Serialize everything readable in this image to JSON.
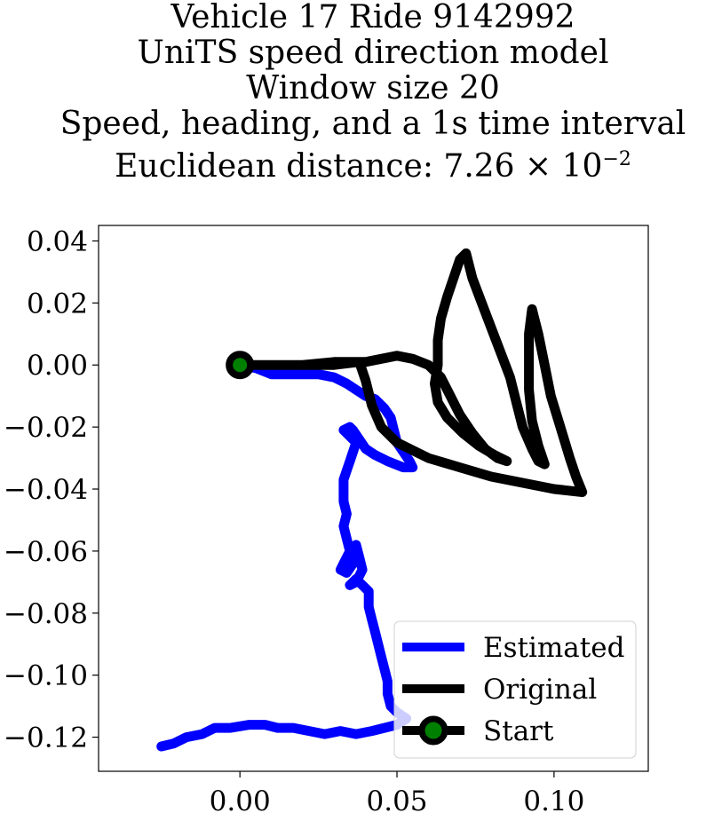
{
  "title": {
    "line1": "Vehicle 17 Ride 9142992",
    "line2": "UniTS speed direction model",
    "line3": "Window size 20",
    "line4": "Speed, heading, and a 1s time interval",
    "line5_prefix": "Euclidean distance: 7.26 × 10",
    "line5_exponent": "−2"
  },
  "chart_data": {
    "type": "line",
    "xlim": [
      -0.045,
      0.13
    ],
    "ylim": [
      -0.131,
      0.045
    ],
    "x_ticks": [
      {
        "value": 0.0,
        "label": "0.00"
      },
      {
        "value": 0.05,
        "label": "0.05"
      },
      {
        "value": 0.1,
        "label": "0.10"
      }
    ],
    "y_ticks": [
      {
        "value": 0.04,
        "label": "0.04"
      },
      {
        "value": 0.02,
        "label": "0.02"
      },
      {
        "value": 0.0,
        "label": "0.00"
      },
      {
        "value": -0.02,
        "label": "−0.02"
      },
      {
        "value": -0.04,
        "label": "−0.04"
      },
      {
        "value": -0.06,
        "label": "−0.06"
      },
      {
        "value": -0.08,
        "label": "−0.08"
      },
      {
        "value": -0.1,
        "label": "−0.10"
      },
      {
        "value": -0.12,
        "label": "−0.12"
      }
    ],
    "grid": false,
    "legend_position": "lower-right",
    "series": [
      {
        "name": "Estimated",
        "color": "#0000ff",
        "points": [
          [
            0.0,
            0.0
          ],
          [
            0.005,
            -0.001
          ],
          [
            0.01,
            -0.003
          ],
          [
            0.015,
            -0.003
          ],
          [
            0.02,
            -0.003
          ],
          [
            0.025,
            -0.003
          ],
          [
            0.03,
            -0.004
          ],
          [
            0.034,
            -0.006
          ],
          [
            0.037,
            -0.008
          ],
          [
            0.04,
            -0.01
          ],
          [
            0.043,
            -0.011
          ],
          [
            0.046,
            -0.014
          ],
          [
            0.048,
            -0.017
          ],
          [
            0.049,
            -0.021
          ],
          [
            0.05,
            -0.025
          ],
          [
            0.052,
            -0.028
          ],
          [
            0.054,
            -0.031
          ],
          [
            0.055,
            -0.033
          ],
          [
            0.052,
            -0.033
          ],
          [
            0.047,
            -0.031
          ],
          [
            0.043,
            -0.029
          ],
          [
            0.04,
            -0.027
          ],
          [
            0.038,
            -0.024
          ],
          [
            0.036,
            -0.021
          ],
          [
            0.035,
            -0.02
          ],
          [
            0.033,
            -0.021
          ],
          [
            0.035,
            -0.023
          ],
          [
            0.037,
            -0.025
          ],
          [
            0.036,
            -0.028
          ],
          [
            0.035,
            -0.031
          ],
          [
            0.034,
            -0.034
          ],
          [
            0.033,
            -0.037
          ],
          [
            0.033,
            -0.04
          ],
          [
            0.033,
            -0.044
          ],
          [
            0.034,
            -0.048
          ],
          [
            0.033,
            -0.052
          ],
          [
            0.034,
            -0.056
          ],
          [
            0.035,
            -0.06
          ],
          [
            0.033,
            -0.064
          ],
          [
            0.032,
            -0.066
          ],
          [
            0.034,
            -0.067
          ],
          [
            0.036,
            -0.064
          ],
          [
            0.037,
            -0.06
          ],
          [
            0.037,
            -0.058
          ],
          [
            0.038,
            -0.062
          ],
          [
            0.039,
            -0.066
          ],
          [
            0.037,
            -0.07
          ],
          [
            0.035,
            -0.071
          ],
          [
            0.037,
            -0.069
          ],
          [
            0.039,
            -0.071
          ],
          [
            0.041,
            -0.073
          ],
          [
            0.041,
            -0.078
          ],
          [
            0.042,
            -0.082
          ],
          [
            0.043,
            -0.086
          ],
          [
            0.044,
            -0.09
          ],
          [
            0.045,
            -0.094
          ],
          [
            0.046,
            -0.098
          ],
          [
            0.047,
            -0.102
          ],
          [
            0.047,
            -0.106
          ],
          [
            0.048,
            -0.11
          ],
          [
            0.05,
            -0.112
          ],
          [
            0.053,
            -0.114
          ],
          [
            0.05,
            -0.116
          ],
          [
            0.046,
            -0.117
          ],
          [
            0.042,
            -0.118
          ],
          [
            0.037,
            -0.119
          ],
          [
            0.032,
            -0.118
          ],
          [
            0.027,
            -0.119
          ],
          [
            0.022,
            -0.118
          ],
          [
            0.017,
            -0.117
          ],
          [
            0.012,
            -0.117
          ],
          [
            0.008,
            -0.116
          ],
          [
            0.003,
            -0.116
          ],
          [
            -0.003,
            -0.117
          ],
          [
            -0.008,
            -0.117
          ],
          [
            -0.012,
            -0.119
          ],
          [
            -0.017,
            -0.12
          ],
          [
            -0.021,
            -0.122
          ],
          [
            -0.025,
            -0.123
          ]
        ]
      },
      {
        "name": "Original",
        "color": "#000000",
        "points": [
          [
            0.0,
            0.0
          ],
          [
            0.01,
            0.0
          ],
          [
            0.02,
            0.0
          ],
          [
            0.03,
            0.001
          ],
          [
            0.04,
            0.001
          ],
          [
            0.045,
            0.002
          ],
          [
            0.05,
            0.003
          ],
          [
            0.055,
            0.002
          ],
          [
            0.06,
            0.0
          ],
          [
            0.064,
            -0.004
          ],
          [
            0.067,
            -0.01
          ],
          [
            0.07,
            -0.016
          ],
          [
            0.074,
            -0.022
          ],
          [
            0.078,
            -0.027
          ],
          [
            0.082,
            -0.03
          ],
          [
            0.085,
            -0.031
          ],
          [
            0.081,
            -0.029
          ],
          [
            0.076,
            -0.026
          ],
          [
            0.071,
            -0.022
          ],
          [
            0.066,
            -0.017
          ],
          [
            0.063,
            -0.012
          ],
          [
            0.062,
            -0.006
          ],
          [
            0.063,
            0.0
          ],
          [
            0.063,
            0.008
          ],
          [
            0.064,
            0.015
          ],
          [
            0.066,
            0.022
          ],
          [
            0.068,
            0.028
          ],
          [
            0.07,
            0.034
          ],
          [
            0.072,
            0.036
          ],
          [
            0.074,
            0.028
          ],
          [
            0.077,
            0.02
          ],
          [
            0.08,
            0.012
          ],
          [
            0.083,
            0.004
          ],
          [
            0.086,
            -0.004
          ],
          [
            0.088,
            -0.012
          ],
          [
            0.09,
            -0.02
          ],
          [
            0.093,
            -0.027
          ],
          [
            0.095,
            -0.031
          ],
          [
            0.097,
            -0.032
          ],
          [
            0.095,
            -0.026
          ],
          [
            0.093,
            -0.018
          ],
          [
            0.092,
            -0.008
          ],
          [
            0.092,
            0.002
          ],
          [
            0.092,
            0.01
          ],
          [
            0.093,
            0.018
          ],
          [
            0.095,
            0.01
          ],
          [
            0.097,
            0.0
          ],
          [
            0.099,
            -0.01
          ],
          [
            0.102,
            -0.02
          ],
          [
            0.105,
            -0.03
          ],
          [
            0.107,
            -0.036
          ],
          [
            0.109,
            -0.041
          ],
          [
            0.1,
            -0.04
          ],
          [
            0.09,
            -0.038
          ],
          [
            0.08,
            -0.036
          ],
          [
            0.07,
            -0.033
          ],
          [
            0.06,
            -0.03
          ],
          [
            0.05,
            -0.025
          ],
          [
            0.045,
            -0.02
          ],
          [
            0.042,
            -0.013
          ],
          [
            0.04,
            -0.005
          ],
          [
            0.038,
            0.001
          ],
          [
            0.03,
            0.0
          ],
          [
            0.02,
            0.0
          ],
          [
            0.01,
            0.0
          ],
          [
            0.0,
            0.0
          ]
        ]
      }
    ],
    "start_point": {
      "name": "Start",
      "x": 0.0,
      "y": 0.0,
      "edge_color": "#000000",
      "face_color": "#008000"
    }
  }
}
